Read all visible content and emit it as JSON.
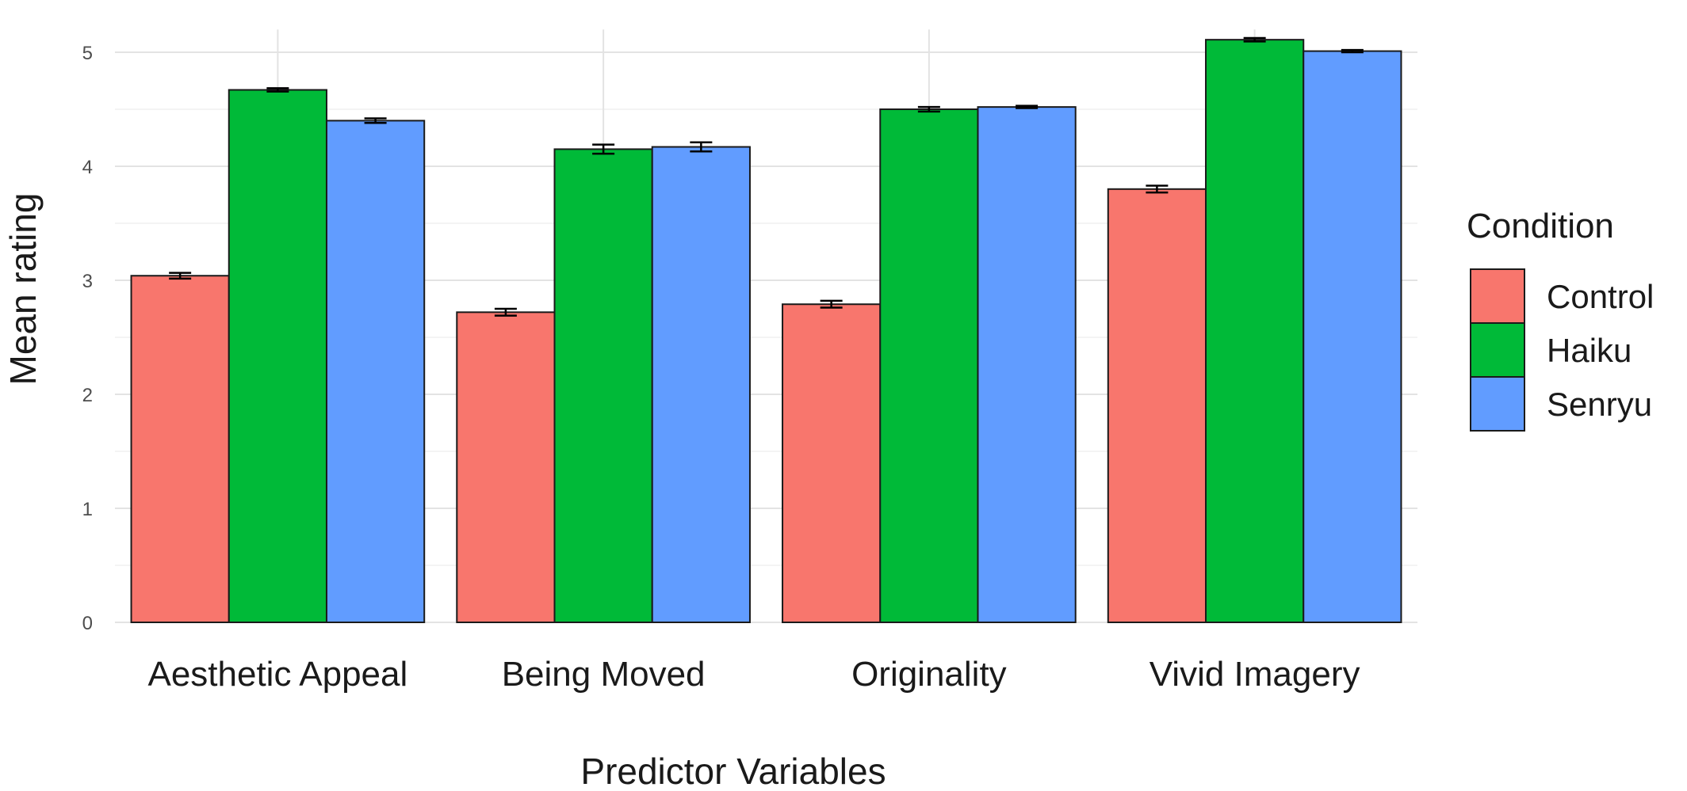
{
  "chart_data": {
    "type": "bar",
    "title": "",
    "xlabel": "Predictor Variables",
    "ylabel": "Mean rating",
    "ylim": [
      0,
      5.2
    ],
    "yticks": [
      0,
      1,
      2,
      3,
      4,
      5
    ],
    "categories": [
      "Aesthetic Appeal",
      "Being Moved",
      "Originality",
      "Vivid Imagery"
    ],
    "series": [
      {
        "name": "Control",
        "color": "#F8766D",
        "values": [
          3.04,
          2.72,
          2.79,
          3.8
        ],
        "errors": [
          0.025,
          0.03,
          0.03,
          0.03
        ]
      },
      {
        "name": "Haiku",
        "color": "#00BA38",
        "values": [
          4.67,
          4.15,
          4.5,
          5.11
        ],
        "errors": [
          0.015,
          0.04,
          0.02,
          0.015
        ]
      },
      {
        "name": "Senryu",
        "color": "#619CFF",
        "values": [
          4.4,
          4.17,
          4.52,
          5.01
        ],
        "errors": [
          0.02,
          0.04,
          0.01,
          0.01
        ]
      }
    ],
    "legend": {
      "title": "Condition",
      "position": "right"
    },
    "grid": true,
    "error_bars": true
  }
}
